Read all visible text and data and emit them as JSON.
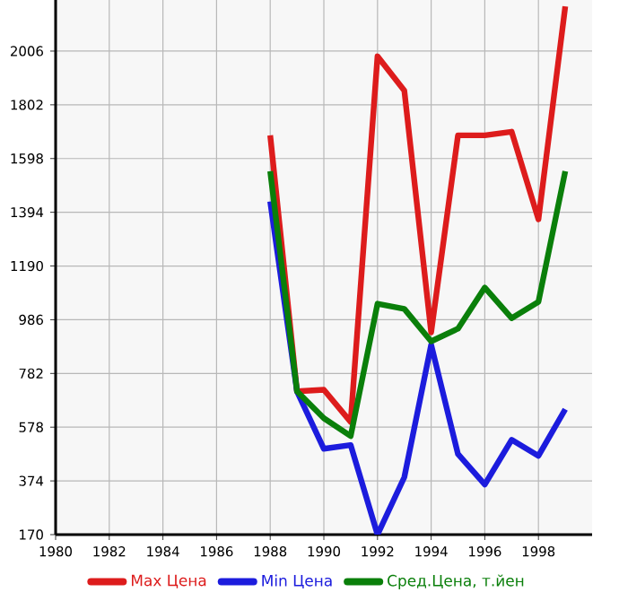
{
  "chart_data": {
    "type": "line",
    "x": [
      1988,
      1989,
      1990,
      1991,
      1992,
      1993,
      1994,
      1995,
      1996,
      1997,
      1998,
      1999
    ],
    "series": [
      {
        "name": "Max Цена",
        "color": "#dd1c1c",
        "values": [
          1686,
          714,
          720,
          598,
          1986,
          1856,
          938,
          1686,
          1686,
          1700,
          1367,
          2176
        ]
      },
      {
        "name": "Min Цена",
        "color": "#1c1cdd",
        "values": [
          1435,
          714,
          496,
          510,
          170,
          388,
          891,
          476,
          360,
          530,
          469,
          646
        ]
      },
      {
        "name": "Сред.Цена, т.йен",
        "color": "#0a7f0a",
        "values": [
          1550,
          714,
          612,
          544,
          1047,
          1027,
          904,
          952,
          1108,
          992,
          1054,
          1550
        ]
      }
    ],
    "xlim": [
      1980,
      2000
    ],
    "xticks": [
      1980,
      1982,
      1984,
      1986,
      1988,
      1990,
      1992,
      1994,
      1996,
      1998
    ],
    "ylim": [
      170,
      2200
    ],
    "yticks": [
      170,
      374,
      578,
      782,
      986,
      1190,
      1394,
      1598,
      1802,
      2006
    ],
    "grid": true,
    "legend": "bottom",
    "marker": "none",
    "line_style": "solid"
  }
}
